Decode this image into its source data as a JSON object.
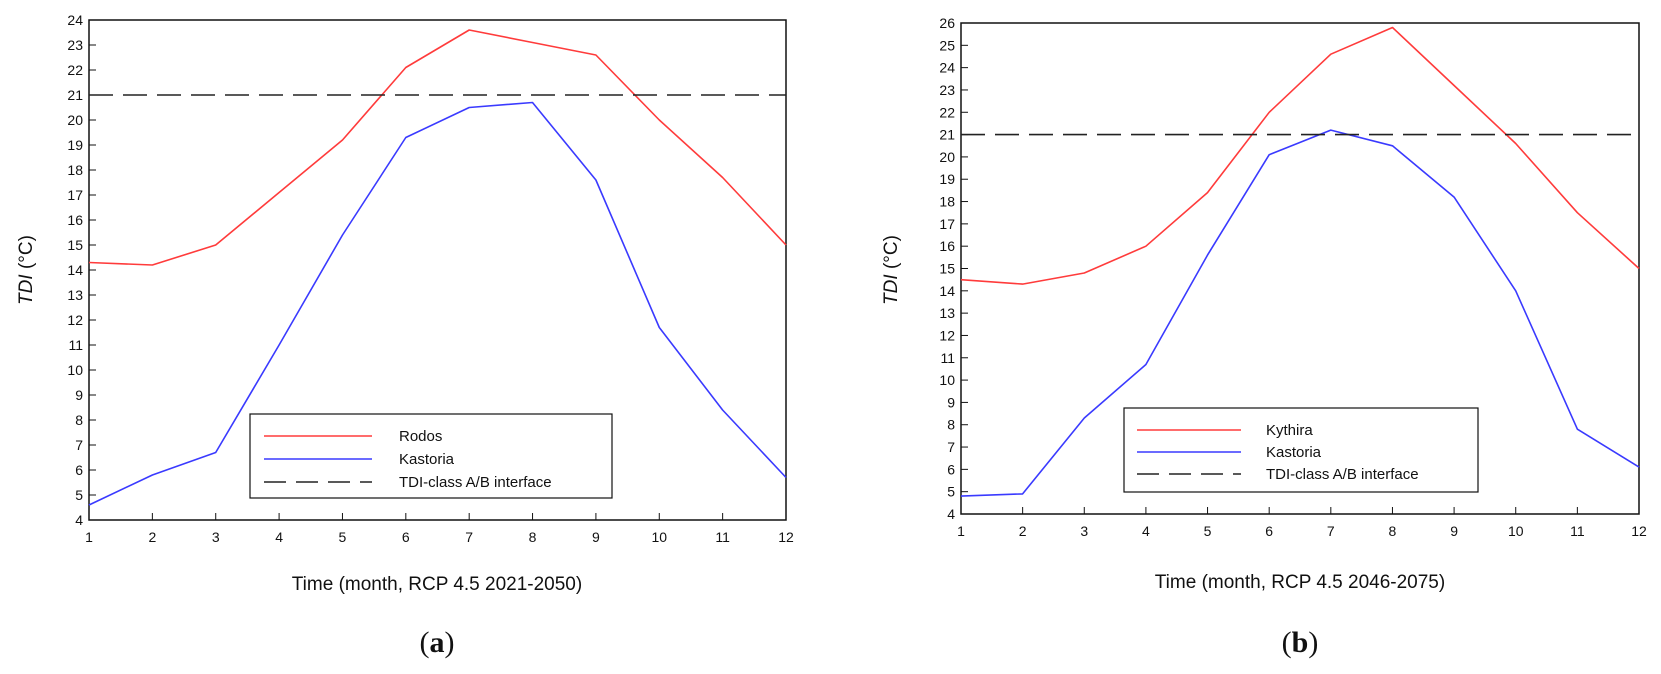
{
  "chart_data": [
    {
      "type": "line",
      "panel_label": "a",
      "xlabel": "Time (month, RCP 4.5 2021-2050)",
      "ylabel_italic": "TDI",
      "ylabel_unit": " (°C)",
      "x": [
        1,
        2,
        3,
        4,
        5,
        6,
        7,
        8,
        9,
        10,
        11,
        12
      ],
      "xlim": [
        1,
        12
      ],
      "ylim": [
        4,
        24
      ],
      "series": [
        {
          "name": "Rodos",
          "color": "#ff3b3b",
          "dash": "none",
          "values": [
            14.3,
            14.2,
            15.0,
            17.1,
            19.2,
            22.1,
            23.6,
            23.1,
            22.6,
            20.0,
            17.7,
            15.0
          ]
        },
        {
          "name": "Kastoria",
          "color": "#3a3aff",
          "dash": "none",
          "values": [
            4.6,
            5.8,
            6.7,
            11.0,
            15.4,
            19.3,
            20.5,
            20.7,
            17.6,
            11.7,
            8.4,
            5.7
          ]
        },
        {
          "name": "TDI-class A/B interface",
          "color": "#222222",
          "dash": "dashed",
          "values": [
            21,
            21,
            21,
            21,
            21,
            21,
            21,
            21,
            21,
            21,
            21,
            21
          ]
        }
      ],
      "legend_position": "bottom-center"
    },
    {
      "type": "line",
      "panel_label": "b",
      "xlabel": "Time (month, RCP 4.5 2046-2075)",
      "ylabel_italic": "TDI",
      "ylabel_unit": " (°C)",
      "x": [
        1,
        2,
        3,
        4,
        5,
        6,
        7,
        8,
        9,
        10,
        11,
        12
      ],
      "xlim": [
        1,
        12
      ],
      "ylim": [
        4,
        26
      ],
      "series": [
        {
          "name": "Kythira",
          "color": "#ff3b3b",
          "dash": "none",
          "values": [
            14.5,
            14.3,
            14.8,
            16.0,
            18.4,
            22.0,
            24.6,
            25.8,
            23.2,
            20.6,
            17.5,
            15.0
          ]
        },
        {
          "name": "Kastoria",
          "color": "#3a3aff",
          "dash": "none",
          "values": [
            4.8,
            4.9,
            8.3,
            10.7,
            15.6,
            20.1,
            21.2,
            20.5,
            18.2,
            14.0,
            7.8,
            6.1
          ]
        },
        {
          "name": "TDI-class A/B interface",
          "color": "#222222",
          "dash": "dashed",
          "values": [
            21,
            21,
            21,
            21,
            21,
            21,
            21,
            21,
            21,
            21,
            21,
            21
          ]
        }
      ],
      "legend_position": "bottom-center"
    }
  ]
}
